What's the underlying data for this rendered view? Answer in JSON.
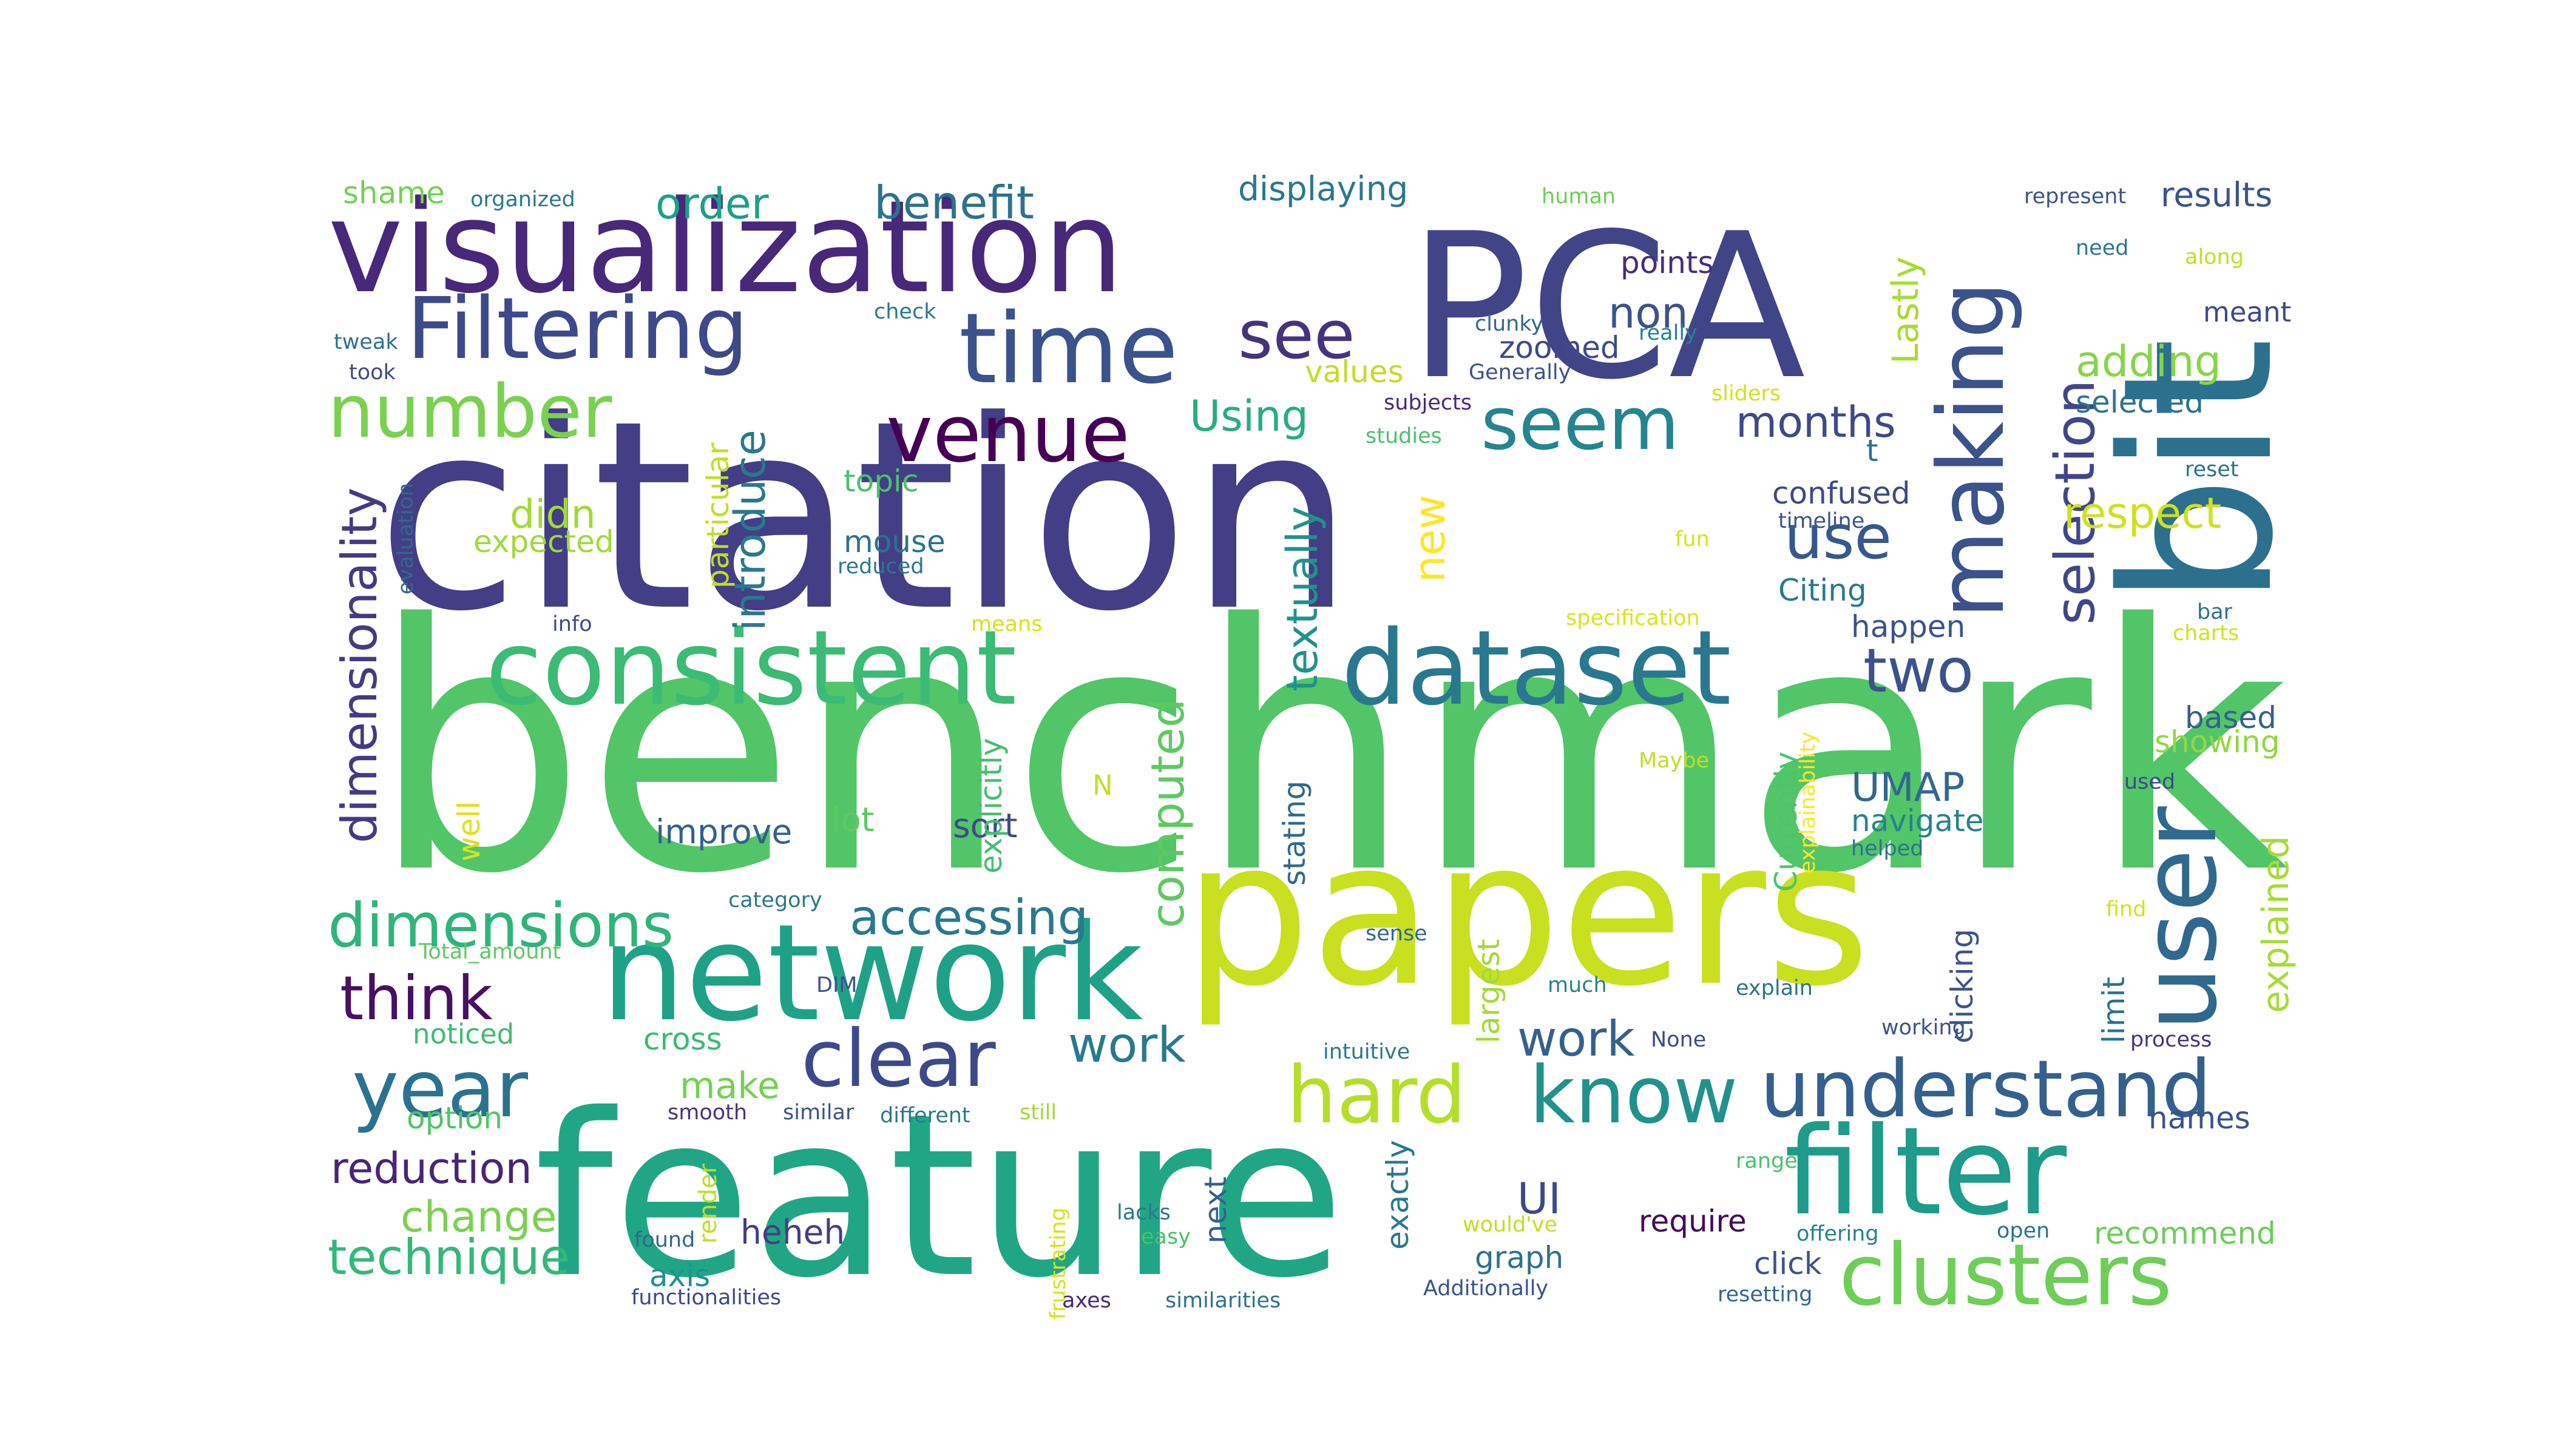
{
  "words": [
    {
      "text": "benchmark",
      "color": "#52c569"
    },
    {
      "text": "citation",
      "color": "#433e85"
    },
    {
      "text": "feature",
      "color": "#21a685"
    },
    {
      "text": "papers",
      "color": "#c8e020"
    },
    {
      "text": "PCA",
      "color": "#414487"
    },
    {
      "text": "bit",
      "color": "#2d708e"
    },
    {
      "text": "visualization",
      "color": "#482878"
    },
    {
      "text": "network",
      "color": "#1fa187"
    },
    {
      "text": "user",
      "color": "#31688e"
    },
    {
      "text": "consistent",
      "color": "#3bbb75"
    },
    {
      "text": "dataset",
      "color": "#2a788e"
    },
    {
      "text": "filter",
      "color": "#1e9b8a"
    },
    {
      "text": "understand",
      "color": "#355f8d"
    },
    {
      "text": "making",
      "color": "#3b528b"
    },
    {
      "text": "hard",
      "color": "#b5de2b"
    },
    {
      "text": "know",
      "color": "#21918c"
    },
    {
      "text": "clusters",
      "color": "#6ece58"
    },
    {
      "text": "clear",
      "color": "#3e4989"
    },
    {
      "text": "time",
      "color": "#3b528b"
    },
    {
      "text": "Filtering",
      "color": "#3e4989"
    },
    {
      "text": "year",
      "color": "#2c728e"
    },
    {
      "text": "venue",
      "color": "#440154"
    },
    {
      "text": "seem",
      "color": "#25858e"
    },
    {
      "text": "see",
      "color": "#46337e"
    },
    {
      "text": "number",
      "color": "#7ad151"
    },
    {
      "text": "dimensions",
      "color": "#2fb47c"
    },
    {
      "text": "selection",
      "color": "#404688"
    },
    {
      "text": "think",
      "color": "#471063"
    },
    {
      "text": "two",
      "color": "#3b528b"
    },
    {
      "text": "use",
      "color": "#38588c"
    },
    {
      "text": "technique",
      "color": "#35b779"
    },
    {
      "text": "accessing",
      "color": "#2a788e"
    },
    {
      "text": "work",
      "color": "#2a788e"
    },
    {
      "text": "work",
      "color": "#355f8d"
    },
    {
      "text": "reduction",
      "color": "#482576"
    },
    {
      "text": "adding",
      "color": "#86d549"
    },
    {
      "text": "benefit",
      "color": "#2c728e"
    },
    {
      "text": "respect",
      "color": "#d0e11c"
    },
    {
      "text": "UMAP",
      "color": "#31688e"
    },
    {
      "text": "order",
      "color": "#1f9e89"
    },
    {
      "text": "change",
      "color": "#7ad151"
    },
    {
      "text": "non",
      "color": "#3b528b"
    },
    {
      "text": "months",
      "color": "#3e4989"
    },
    {
      "text": "dimensionality",
      "color": "#443a83"
    },
    {
      "text": "Using",
      "color": "#27ad81"
    },
    {
      "text": "textually",
      "color": "#21918c"
    },
    {
      "text": "computed",
      "color": "#5ec962"
    },
    {
      "text": "introduce",
      "color": "#2a788e"
    },
    {
      "text": "new",
      "color": "#fde725"
    },
    {
      "text": "didn",
      "color": "#a2da37"
    },
    {
      "text": "make",
      "color": "#75d054"
    },
    {
      "text": "UI",
      "color": "#3e4989"
    },
    {
      "text": "points",
      "color": "#472d7b"
    },
    {
      "text": "Lastly",
      "color": "#a8db34"
    },
    {
      "text": "displaying",
      "color": "#2a788e"
    },
    {
      "text": "selected",
      "color": "#2c728e"
    },
    {
      "text": "results",
      "color": "#3b528b"
    },
    {
      "text": "explained",
      "color": "#a8db34"
    },
    {
      "text": "showing",
      "color": "#93d741"
    },
    {
      "text": "based",
      "color": "#355f8d"
    },
    {
      "text": "confused",
      "color": "#3e4989"
    },
    {
      "text": "happen",
      "color": "#3b528b"
    },
    {
      "text": "Citing",
      "color": "#2a788e"
    },
    {
      "text": "navigate",
      "color": "#26828e"
    },
    {
      "text": "improve",
      "color": "#355f8d"
    },
    {
      "text": "sort",
      "color": "#3e4989"
    },
    {
      "text": "lot",
      "color": "#5ec962"
    },
    {
      "text": "mouse",
      "color": "#2c728e"
    },
    {
      "text": "topic",
      "color": "#4ac16d"
    },
    {
      "text": "expected",
      "color": "#9fda3a"
    },
    {
      "text": "noticed",
      "color": "#3fbc73"
    },
    {
      "text": "option",
      "color": "#50c46a"
    },
    {
      "text": "cross",
      "color": "#3aba76"
    },
    {
      "text": "heheh",
      "color": "#433e85"
    },
    {
      "text": "axis",
      "color": "#21918c"
    },
    {
      "text": "click",
      "color": "#3b528b"
    },
    {
      "text": "require",
      "color": "#46085c"
    },
    {
      "text": "graph",
      "color": "#2c728e"
    },
    {
      "text": "recommend",
      "color": "#6ccd5a"
    },
    {
      "text": "names",
      "color": "#3b528b"
    },
    {
      "text": "zoomed",
      "color": "#3e4989"
    },
    {
      "text": "values",
      "color": "#bddf26"
    },
    {
      "text": "t",
      "color": "#2c728e"
    },
    {
      "text": "stating",
      "color": "#31688e"
    },
    {
      "text": "exactly",
      "color": "#2a788e"
    },
    {
      "text": "next",
      "color": "#355f8d"
    },
    {
      "text": "largest",
      "color": "#a2da37"
    },
    {
      "text": "Currently",
      "color": "#4ec36b"
    },
    {
      "text": "clicking",
      "color": "#3b528b"
    },
    {
      "text": "limit",
      "color": "#2c728e"
    },
    {
      "text": "explicitly",
      "color": "#44bf70"
    },
    {
      "text": "particular",
      "color": "#c0df25"
    },
    {
      "text": "render",
      "color": "#c0df25"
    },
    {
      "text": "well",
      "color": "#dfe318"
    },
    {
      "text": "N",
      "color": "#c2df23"
    },
    {
      "text": "shame",
      "color": "#75d054"
    },
    {
      "text": "organized",
      "color": "#2a788e"
    },
    {
      "text": "human",
      "color": "#6ece58"
    },
    {
      "text": "represent",
      "color": "#3b528b"
    },
    {
      "text": "check",
      "color": "#2a788e"
    },
    {
      "text": "tweak",
      "color": "#2c728e"
    },
    {
      "text": "took",
      "color": "#3e4989"
    },
    {
      "text": "clunky",
      "color": "#31688e"
    },
    {
      "text": "really",
      "color": "#26828e"
    },
    {
      "text": "Generally",
      "color": "#3b528b"
    },
    {
      "text": "need",
      "color": "#2a788e"
    },
    {
      "text": "along",
      "color": "#c2df23"
    },
    {
      "text": "meant",
      "color": "#3e4989"
    },
    {
      "text": "subjects",
      "color": "#482878"
    },
    {
      "text": "studies",
      "color": "#4ac16d"
    },
    {
      "text": "sliders",
      "color": "#d2e21b"
    },
    {
      "text": "reset",
      "color": "#2c728e"
    },
    {
      "text": "timeline",
      "color": "#3b528b"
    },
    {
      "text": "fun",
      "color": "#d8e219"
    },
    {
      "text": "reduced",
      "color": "#2a788e"
    },
    {
      "text": "evaluation",
      "color": "#31688e"
    },
    {
      "text": "info",
      "color": "#3e4989"
    },
    {
      "text": "means",
      "color": "#d8e219"
    },
    {
      "text": "specification",
      "color": "#dde318"
    },
    {
      "text": "bar",
      "color": "#2c728e"
    },
    {
      "text": "charts",
      "color": "#d2e21b"
    },
    {
      "text": "Maybe",
      "color": "#c2df23"
    },
    {
      "text": "explainability",
      "color": "#fde725"
    },
    {
      "text": "used",
      "color": "#3e4989"
    },
    {
      "text": "helped",
      "color": "#2c728e"
    },
    {
      "text": "category",
      "color": "#2a788e"
    },
    {
      "text": "Total_amount",
      "color": "#5ec962"
    },
    {
      "text": "DIM",
      "color": "#3b528b"
    },
    {
      "text": "sense",
      "color": "#31688e"
    },
    {
      "text": "much",
      "color": "#26828e"
    },
    {
      "text": "explain",
      "color": "#2c728e"
    },
    {
      "text": "find",
      "color": "#d8e219"
    },
    {
      "text": "working",
      "color": "#3b528b"
    },
    {
      "text": "process",
      "color": "#46337e"
    },
    {
      "text": "intuitive",
      "color": "#2a788e"
    },
    {
      "text": "None",
      "color": "#3e4989"
    },
    {
      "text": "smooth",
      "color": "#46337e"
    },
    {
      "text": "similar",
      "color": "#3b528b"
    },
    {
      "text": "different",
      "color": "#2a788e"
    },
    {
      "text": "still",
      "color": "#a0da39"
    },
    {
      "text": "range",
      "color": "#4ac16d"
    },
    {
      "text": "frustrating",
      "color": "#d8e219"
    },
    {
      "text": "lacks",
      "color": "#2a788e"
    },
    {
      "text": "easy",
      "color": "#4ac16d"
    },
    {
      "text": "would've",
      "color": "#c2df23"
    },
    {
      "text": "offering",
      "color": "#26828e"
    },
    {
      "text": "open",
      "color": "#2c728e"
    },
    {
      "text": "found",
      "color": "#31688e"
    },
    {
      "text": "functionalities",
      "color": "#3e4989"
    },
    {
      "text": "axes",
      "color": "#482878"
    },
    {
      "text": "similarities",
      "color": "#2c728e"
    },
    {
      "text": "Additionally",
      "color": "#3b528b"
    },
    {
      "text": "resetting",
      "color": "#31688e"
    }
  ]
}
